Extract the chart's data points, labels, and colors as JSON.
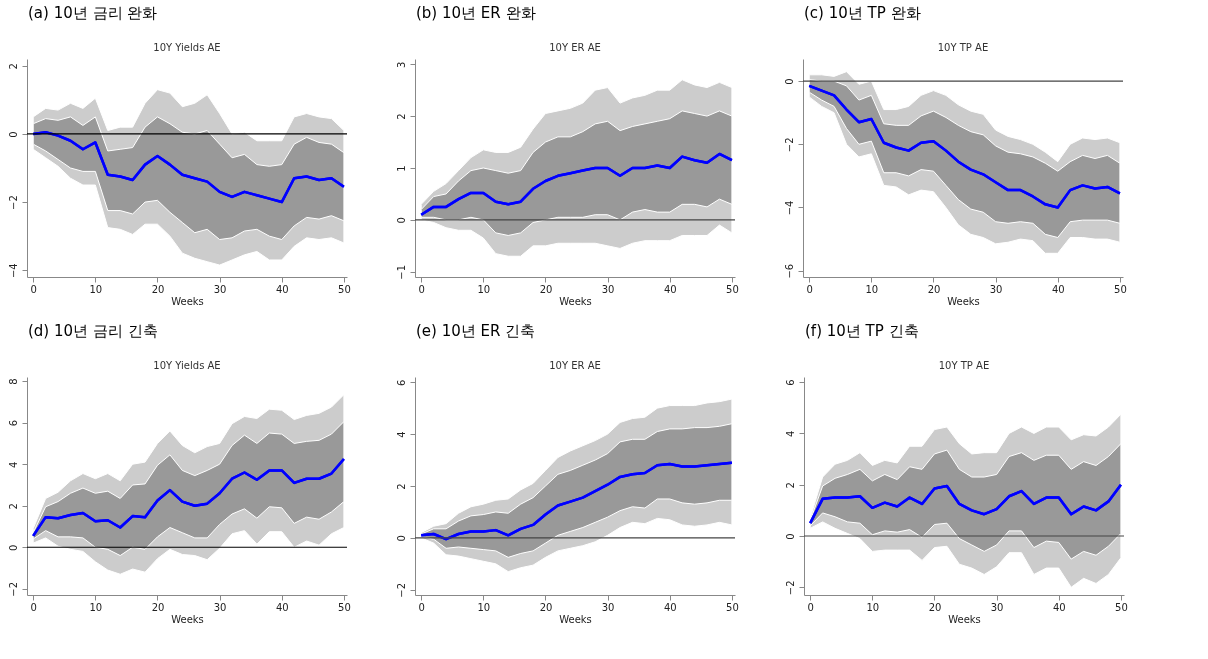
{
  "chart_data": [
    {
      "type": "line",
      "title": "(a) 10년 금리 완화",
      "subtitle": "10Y Yields AE",
      "xlabel": "Weeks",
      "x": [
        0,
        2,
        4,
        6,
        8,
        10,
        12,
        14,
        16,
        18,
        20,
        22,
        24,
        26,
        28,
        30,
        32,
        34,
        36,
        38,
        40,
        42,
        44,
        46,
        48,
        50
      ],
      "xlim": [
        -1,
        50.5
      ],
      "xticks": [
        0,
        10,
        20,
        30,
        40,
        50
      ],
      "ylim": [
        -4.2,
        2.2
      ],
      "yticks": [
        -4,
        -2,
        0,
        2
      ],
      "grid": false,
      "ref_lines": [
        {
          "axis": "y",
          "value": 0,
          "color": "#000000"
        }
      ],
      "series": [
        {
          "type": "line",
          "color": "#0000ff",
          "values": [
            0,
            0.05,
            -0.05,
            -0.2,
            -0.45,
            -0.25,
            -1.2,
            -1.25,
            -1.35,
            -0.9,
            -0.65,
            -0.9,
            -1.2,
            -1.3,
            -1.4,
            -1.7,
            -1.85,
            -1.7,
            -1.8,
            -1.9,
            -2.0,
            -1.3,
            -1.25,
            -1.35,
            -1.3,
            -1.55
          ],
          "lower": [
            -0.45,
            -0.7,
            -0.95,
            -1.3,
            -1.5,
            -1.5,
            -2.75,
            -2.8,
            -2.95,
            -2.65,
            -2.65,
            -3.0,
            -3.5,
            -3.65,
            -3.75,
            -3.85,
            -3.7,
            -3.55,
            -3.45,
            -3.7,
            -3.7,
            -3.3,
            -3.05,
            -3.1,
            -3.05,
            -3.2
          ],
          "upper": [
            0.5,
            0.75,
            0.7,
            0.9,
            0.75,
            1.05,
            0.1,
            0.2,
            0.2,
            0.9,
            1.3,
            1.2,
            0.8,
            0.9,
            1.15,
            0.6,
            0.0,
            0.05,
            -0.2,
            -0.2,
            -0.2,
            0.5,
            0.6,
            0.5,
            0.45,
            0.1
          ]
        },
        {
          "type": "line",
          "color": "#0000ff",
          "values": [
            0,
            0.05,
            -0.05,
            -0.2,
            -0.45,
            -0.25,
            -1.2,
            -1.25,
            -1.35,
            -0.9,
            -0.65,
            -0.9,
            -1.2,
            -1.3,
            -1.4,
            -1.7,
            -1.85,
            -1.7,
            -1.8,
            -1.9,
            -2.0,
            -1.3,
            -1.25,
            -1.35,
            -1.3,
            -1.55
          ],
          "lower": [
            -0.3,
            -0.5,
            -0.75,
            -1.0,
            -1.1,
            -1.1,
            -2.25,
            -2.25,
            -2.35,
            -2.0,
            -1.95,
            -2.3,
            -2.6,
            -2.9,
            -2.8,
            -3.1,
            -3.05,
            -2.85,
            -2.8,
            -3.0,
            -3.1,
            -2.7,
            -2.45,
            -2.5,
            -2.4,
            -2.55
          ],
          "upper": [
            0.3,
            0.45,
            0.4,
            0.5,
            0.25,
            0.5,
            -0.5,
            -0.45,
            -0.4,
            0.2,
            0.5,
            0.3,
            0.05,
            0.0,
            0.1,
            -0.3,
            -0.7,
            -0.6,
            -0.9,
            -0.95,
            -0.9,
            -0.3,
            -0.1,
            -0.25,
            -0.3,
            -0.55
          ]
        }
      ]
    },
    {
      "type": "line",
      "title": "(b) 10년 ER 완화",
      "subtitle": "10Y ER AE",
      "xlabel": "Weeks",
      "x": [
        0,
        2,
        4,
        6,
        8,
        10,
        12,
        14,
        16,
        18,
        20,
        22,
        24,
        26,
        28,
        30,
        32,
        34,
        36,
        38,
        40,
        42,
        44,
        46,
        48,
        50
      ],
      "xlim": [
        -1,
        50.5
      ],
      "xticks": [
        0,
        10,
        20,
        30,
        40,
        50
      ],
      "ylim": [
        -1.1,
        3.1
      ],
      "yticks": [
        -1,
        0,
        1,
        2,
        3
      ],
      "grid": false,
      "ref_lines": [
        {
          "axis": "y",
          "value": 0,
          "color": "#444444"
        }
      ],
      "series": [
        {
          "type": "line",
          "color": "#0000ff",
          "values": [
            0.1,
            0.25,
            0.25,
            0.4,
            0.52,
            0.52,
            0.35,
            0.3,
            0.35,
            0.6,
            0.75,
            0.85,
            0.9,
            0.95,
            1.0,
            1.0,
            0.85,
            1.0,
            1.0,
            1.05,
            1.0,
            1.22,
            1.15,
            1.1,
            1.27,
            1.15
          ],
          "lower": [
            0.0,
            -0.05,
            -0.15,
            -0.2,
            -0.2,
            -0.35,
            -0.65,
            -0.7,
            -0.7,
            -0.5,
            -0.5,
            -0.45,
            -0.45,
            -0.45,
            -0.45,
            -0.5,
            -0.55,
            -0.45,
            -0.4,
            -0.4,
            -0.4,
            -0.3,
            -0.3,
            -0.3,
            -0.1,
            -0.25
          ],
          "upper": [
            0.3,
            0.55,
            0.7,
            0.95,
            1.2,
            1.35,
            1.3,
            1.3,
            1.4,
            1.75,
            2.05,
            2.1,
            2.15,
            2.25,
            2.5,
            2.55,
            2.25,
            2.35,
            2.4,
            2.5,
            2.5,
            2.7,
            2.6,
            2.55,
            2.65,
            2.55
          ]
        },
        {
          "type": "line",
          "color": "#0000ff",
          "values": [
            0.1,
            0.25,
            0.25,
            0.4,
            0.52,
            0.52,
            0.35,
            0.3,
            0.35,
            0.6,
            0.75,
            0.85,
            0.9,
            0.95,
            1.0,
            1.0,
            0.85,
            1.0,
            1.0,
            1.05,
            1.0,
            1.22,
            1.15,
            1.1,
            1.27,
            1.15
          ],
          "lower": [
            0.05,
            0.05,
            0.0,
            0.0,
            0.05,
            0.0,
            -0.25,
            -0.3,
            -0.25,
            -0.05,
            0.0,
            0.05,
            0.05,
            0.05,
            0.1,
            0.1,
            0.0,
            0.15,
            0.2,
            0.15,
            0.15,
            0.3,
            0.3,
            0.25,
            0.4,
            0.3
          ],
          "upper": [
            0.2,
            0.45,
            0.5,
            0.75,
            0.95,
            1.0,
            0.95,
            0.9,
            0.95,
            1.3,
            1.5,
            1.6,
            1.6,
            1.7,
            1.85,
            1.9,
            1.72,
            1.8,
            1.85,
            1.9,
            1.95,
            2.1,
            2.05,
            2.0,
            2.1,
            2.0
          ]
        }
      ]
    },
    {
      "type": "line",
      "title": "(c) 10년 TP 완화",
      "subtitle": "10Y TP AE",
      "xlabel": "Weeks",
      "x": [
        0,
        2,
        4,
        6,
        8,
        10,
        12,
        14,
        16,
        18,
        20,
        22,
        24,
        26,
        28,
        30,
        32,
        34,
        36,
        38,
        40,
        42,
        44,
        46,
        48,
        50
      ],
      "xlim": [
        -1,
        50.5
      ],
      "xticks": [
        0,
        10,
        20,
        30,
        40,
        50
      ],
      "ylim": [
        -6.2,
        0.7
      ],
      "yticks": [
        -6,
        -4,
        -2,
        0
      ],
      "grid": false,
      "ref_lines": [
        {
          "axis": "y",
          "value": 0,
          "color": "#444444"
        }
      ],
      "series": [
        {
          "type": "line",
          "color": "#0000ff",
          "values": [
            -0.15,
            -0.3,
            -0.45,
            -0.9,
            -1.3,
            -1.2,
            -1.95,
            -2.1,
            -2.2,
            -1.95,
            -1.9,
            -2.2,
            -2.55,
            -2.8,
            -2.95,
            -3.2,
            -3.45,
            -3.45,
            -3.65,
            -3.9,
            -4.0,
            -3.45,
            -3.3,
            -3.4,
            -3.35,
            -3.55
          ],
          "lower": [
            -0.5,
            -0.8,
            -1.0,
            -2.0,
            -2.4,
            -2.3,
            -3.3,
            -3.35,
            -3.6,
            -3.45,
            -3.5,
            -4.0,
            -4.55,
            -4.85,
            -4.95,
            -5.15,
            -5.1,
            -5.0,
            -5.05,
            -5.45,
            -5.45,
            -4.95,
            -4.95,
            -5.0,
            -5.0,
            -5.1
          ],
          "upper": [
            0.2,
            0.2,
            0.15,
            0.3,
            -0.1,
            0.0,
            -0.9,
            -0.9,
            -0.8,
            -0.45,
            -0.3,
            -0.45,
            -0.75,
            -0.95,
            -1.05,
            -1.55,
            -1.75,
            -1.85,
            -2.0,
            -2.25,
            -2.55,
            -2.0,
            -1.8,
            -1.85,
            -1.8,
            -1.95
          ]
        },
        {
          "type": "line",
          "color": "#0000ff",
          "values": [
            -0.15,
            -0.3,
            -0.45,
            -0.9,
            -1.3,
            -1.2,
            -1.95,
            -2.1,
            -2.2,
            -1.95,
            -1.9,
            -2.2,
            -2.55,
            -2.8,
            -2.95,
            -3.2,
            -3.45,
            -3.45,
            -3.65,
            -3.9,
            -4.0,
            -3.45,
            -3.3,
            -3.4,
            -3.35,
            -3.55
          ],
          "lower": [
            -0.35,
            -0.6,
            -0.8,
            -1.5,
            -2.0,
            -1.9,
            -2.9,
            -2.9,
            -3.0,
            -2.8,
            -2.85,
            -3.3,
            -3.75,
            -4.05,
            -4.15,
            -4.45,
            -4.5,
            -4.45,
            -4.5,
            -4.85,
            -4.95,
            -4.45,
            -4.4,
            -4.4,
            -4.4,
            -4.5
          ],
          "upper": [
            0.05,
            0.0,
            0.0,
            -0.15,
            -0.6,
            -0.45,
            -1.35,
            -1.4,
            -1.4,
            -1.1,
            -0.95,
            -1.15,
            -1.4,
            -1.6,
            -1.7,
            -2.05,
            -2.25,
            -2.3,
            -2.4,
            -2.6,
            -2.85,
            -2.55,
            -2.35,
            -2.45,
            -2.35,
            -2.6
          ]
        }
      ]
    },
    {
      "type": "line",
      "title": "(d) 10년 금리 긴축",
      "subtitle": "10Y Yields AE",
      "xlabel": "Weeks",
      "x": [
        0,
        2,
        4,
        6,
        8,
        10,
        12,
        14,
        16,
        18,
        20,
        22,
        24,
        26,
        28,
        30,
        32,
        34,
        36,
        38,
        40,
        42,
        44,
        46,
        48,
        50
      ],
      "xlim": [
        -1,
        50.5
      ],
      "xticks": [
        0,
        10,
        20,
        30,
        40,
        50
      ],
      "ylim": [
        -2.3,
        8.2
      ],
      "yticks": [
        -2,
        0,
        2,
        4,
        6,
        8
      ],
      "grid": false,
      "ref_lines": [
        {
          "axis": "y",
          "value": 0,
          "color": "#000000"
        }
      ],
      "series": [
        {
          "type": "line",
          "color": "#0000ff",
          "values": [
            0.55,
            1.45,
            1.4,
            1.55,
            1.65,
            1.25,
            1.3,
            0.95,
            1.5,
            1.45,
            2.25,
            2.75,
            2.2,
            2.0,
            2.1,
            2.6,
            3.3,
            3.6,
            3.25,
            3.7,
            3.7,
            3.1,
            3.3,
            3.3,
            3.55,
            4.25
          ],
          "lower": [
            0.2,
            0.45,
            0.05,
            -0.1,
            -0.2,
            -0.7,
            -1.1,
            -1.3,
            -1.05,
            -1.2,
            -0.55,
            -0.1,
            -0.35,
            -0.4,
            -0.6,
            -0.05,
            0.65,
            0.8,
            0.15,
            0.75,
            0.75,
            0.0,
            0.3,
            0.1,
            0.65,
            0.95
          ],
          "upper": [
            0.9,
            2.35,
            2.65,
            3.2,
            3.55,
            3.3,
            3.55,
            3.2,
            4.0,
            4.1,
            5.0,
            5.6,
            4.9,
            4.55,
            4.85,
            5.0,
            5.95,
            6.3,
            6.2,
            6.65,
            6.6,
            6.15,
            6.35,
            6.45,
            6.75,
            7.35
          ]
        },
        {
          "type": "line",
          "color": "#0000ff",
          "values": [
            0.55,
            1.45,
            1.4,
            1.55,
            1.65,
            1.25,
            1.3,
            0.95,
            1.5,
            1.45,
            2.25,
            2.75,
            2.2,
            2.0,
            2.1,
            2.6,
            3.3,
            3.6,
            3.25,
            3.7,
            3.7,
            3.1,
            3.3,
            3.3,
            3.55,
            4.25
          ],
          "lower": [
            0.4,
            0.8,
            0.5,
            0.5,
            0.45,
            0.0,
            -0.1,
            -0.4,
            0.0,
            -0.1,
            0.5,
            0.95,
            0.7,
            0.45,
            0.45,
            1.1,
            1.6,
            1.85,
            1.4,
            1.95,
            1.9,
            1.15,
            1.45,
            1.35,
            1.7,
            2.2
          ],
          "upper": [
            0.7,
            1.95,
            2.2,
            2.6,
            2.85,
            2.6,
            2.7,
            2.35,
            3.0,
            3.05,
            3.95,
            4.45,
            3.7,
            3.45,
            3.7,
            4.0,
            4.9,
            5.4,
            5.0,
            5.5,
            5.45,
            5.0,
            5.1,
            5.15,
            5.45,
            6.05
          ]
        }
      ]
    },
    {
      "type": "line",
      "title": "(e) 10년 ER 긴축",
      "subtitle": "10Y ER AE",
      "xlabel": "Weeks",
      "x": [
        0,
        2,
        4,
        6,
        8,
        10,
        12,
        14,
        16,
        18,
        20,
        22,
        24,
        26,
        28,
        30,
        32,
        34,
        36,
        38,
        40,
        42,
        44,
        46,
        48,
        50
      ],
      "xlim": [
        -1,
        50.5
      ],
      "xticks": [
        0,
        10,
        20,
        30,
        40,
        50
      ],
      "ylim": [
        -2.2,
        6.2
      ],
      "yticks": [
        -2,
        0,
        2,
        4,
        6
      ],
      "grid": false,
      "ref_lines": [
        {
          "axis": "y",
          "value": 0,
          "color": "#444444"
        }
      ],
      "series": [
        {
          "type": "line",
          "color": "#0000ff",
          "values": [
            0.1,
            0.15,
            -0.05,
            0.15,
            0.25,
            0.25,
            0.3,
            0.1,
            0.35,
            0.5,
            0.9,
            1.25,
            1.4,
            1.55,
            1.8,
            2.05,
            2.35,
            2.45,
            2.5,
            2.8,
            2.85,
            2.75,
            2.75,
            2.8,
            2.85,
            2.9
          ],
          "lower": [
            0.0,
            -0.2,
            -0.65,
            -0.7,
            -0.8,
            -0.9,
            -1.0,
            -1.3,
            -1.15,
            -1.05,
            -0.75,
            -0.5,
            -0.4,
            -0.3,
            -0.15,
            0.1,
            0.4,
            0.6,
            0.55,
            0.75,
            0.7,
            0.5,
            0.45,
            0.5,
            0.6,
            0.5
          ],
          "upper": [
            0.2,
            0.45,
            0.55,
            0.95,
            1.2,
            1.3,
            1.45,
            1.5,
            1.85,
            2.1,
            2.6,
            3.1,
            3.35,
            3.55,
            3.75,
            4.0,
            4.45,
            4.6,
            4.65,
            5.0,
            5.1,
            5.1,
            5.1,
            5.2,
            5.25,
            5.35
          ]
        },
        {
          "type": "line",
          "color": "#0000ff",
          "values": [
            0.1,
            0.15,
            -0.05,
            0.15,
            0.25,
            0.25,
            0.3,
            0.1,
            0.35,
            0.5,
            0.9,
            1.25,
            1.4,
            1.55,
            1.8,
            2.05,
            2.35,
            2.45,
            2.5,
            2.8,
            2.85,
            2.75,
            2.75,
            2.8,
            2.85,
            2.9
          ],
          "lower": [
            0.05,
            -0.05,
            -0.4,
            -0.35,
            -0.4,
            -0.45,
            -0.5,
            -0.75,
            -0.6,
            -0.5,
            -0.2,
            0.1,
            0.25,
            0.4,
            0.6,
            0.8,
            1.05,
            1.2,
            1.15,
            1.5,
            1.5,
            1.35,
            1.3,
            1.35,
            1.45,
            1.45
          ],
          "upper": [
            0.15,
            0.35,
            0.35,
            0.65,
            0.85,
            0.9,
            1.0,
            0.95,
            1.3,
            1.55,
            2.0,
            2.45,
            2.6,
            2.8,
            3.0,
            3.25,
            3.7,
            3.8,
            3.8,
            4.1,
            4.2,
            4.2,
            4.25,
            4.25,
            4.3,
            4.4
          ]
        }
      ]
    },
    {
      "type": "line",
      "title": "(f) 10년 TP 긴축",
      "subtitle": "10Y TP AE",
      "xlabel": "Weeks",
      "x": [
        0,
        2,
        4,
        6,
        8,
        10,
        12,
        14,
        16,
        18,
        20,
        22,
        24,
        26,
        28,
        30,
        32,
        34,
        36,
        38,
        40,
        42,
        44,
        46,
        48,
        50
      ],
      "xlim": [
        -1,
        50.5
      ],
      "xticks": [
        0,
        10,
        20,
        30,
        40,
        50
      ],
      "ylim": [
        -2.3,
        6.2
      ],
      "yticks": [
        -2,
        0,
        2,
        4,
        6
      ],
      "grid": false,
      "ref_lines": [
        {
          "axis": "y",
          "value": 0,
          "color": "#444444"
        }
      ],
      "series": [
        {
          "type": "line",
          "color": "#0000ff",
          "values": [
            0.5,
            1.45,
            1.5,
            1.5,
            1.55,
            1.1,
            1.3,
            1.15,
            1.5,
            1.25,
            1.85,
            1.95,
            1.25,
            1.0,
            0.85,
            1.05,
            1.55,
            1.75,
            1.25,
            1.5,
            1.5,
            0.85,
            1.15,
            1.0,
            1.35,
            2.0
          ],
          "lower": [
            0.3,
            0.55,
            0.3,
            0.1,
            -0.1,
            -0.6,
            -0.55,
            -0.55,
            -0.55,
            -0.95,
            -0.45,
            -0.4,
            -1.1,
            -1.25,
            -1.5,
            -1.2,
            -0.65,
            -0.65,
            -1.5,
            -1.25,
            -1.25,
            -2.0,
            -1.65,
            -1.85,
            -1.5,
            -0.85
          ],
          "upper": [
            0.7,
            2.3,
            2.8,
            2.95,
            3.25,
            2.75,
            2.95,
            2.85,
            3.5,
            3.5,
            4.15,
            4.25,
            3.6,
            3.2,
            3.25,
            3.25,
            4.0,
            4.25,
            4.0,
            4.25,
            4.25,
            3.75,
            3.95,
            3.9,
            4.25,
            4.75
          ]
        },
        {
          "type": "line",
          "color": "#0000ff",
          "values": [
            0.5,
            1.45,
            1.5,
            1.5,
            1.55,
            1.1,
            1.3,
            1.15,
            1.5,
            1.25,
            1.85,
            1.95,
            1.25,
            1.0,
            0.85,
            1.05,
            1.55,
            1.75,
            1.25,
            1.5,
            1.5,
            0.85,
            1.15,
            1.0,
            1.35,
            2.0
          ],
          "lower": [
            0.4,
            0.9,
            0.75,
            0.55,
            0.5,
            0.05,
            0.2,
            0.15,
            0.25,
            -0.05,
            0.45,
            0.5,
            -0.1,
            -0.35,
            -0.6,
            -0.35,
            0.2,
            0.2,
            -0.45,
            -0.2,
            -0.25,
            -0.9,
            -0.6,
            -0.75,
            -0.4,
            0.1
          ],
          "upper": [
            0.6,
            1.95,
            2.25,
            2.4,
            2.6,
            2.15,
            2.4,
            2.2,
            2.7,
            2.6,
            3.2,
            3.35,
            2.6,
            2.3,
            2.3,
            2.4,
            3.1,
            3.25,
            2.95,
            3.15,
            3.15,
            2.6,
            2.9,
            2.75,
            3.1,
            3.6
          ]
        }
      ]
    }
  ]
}
